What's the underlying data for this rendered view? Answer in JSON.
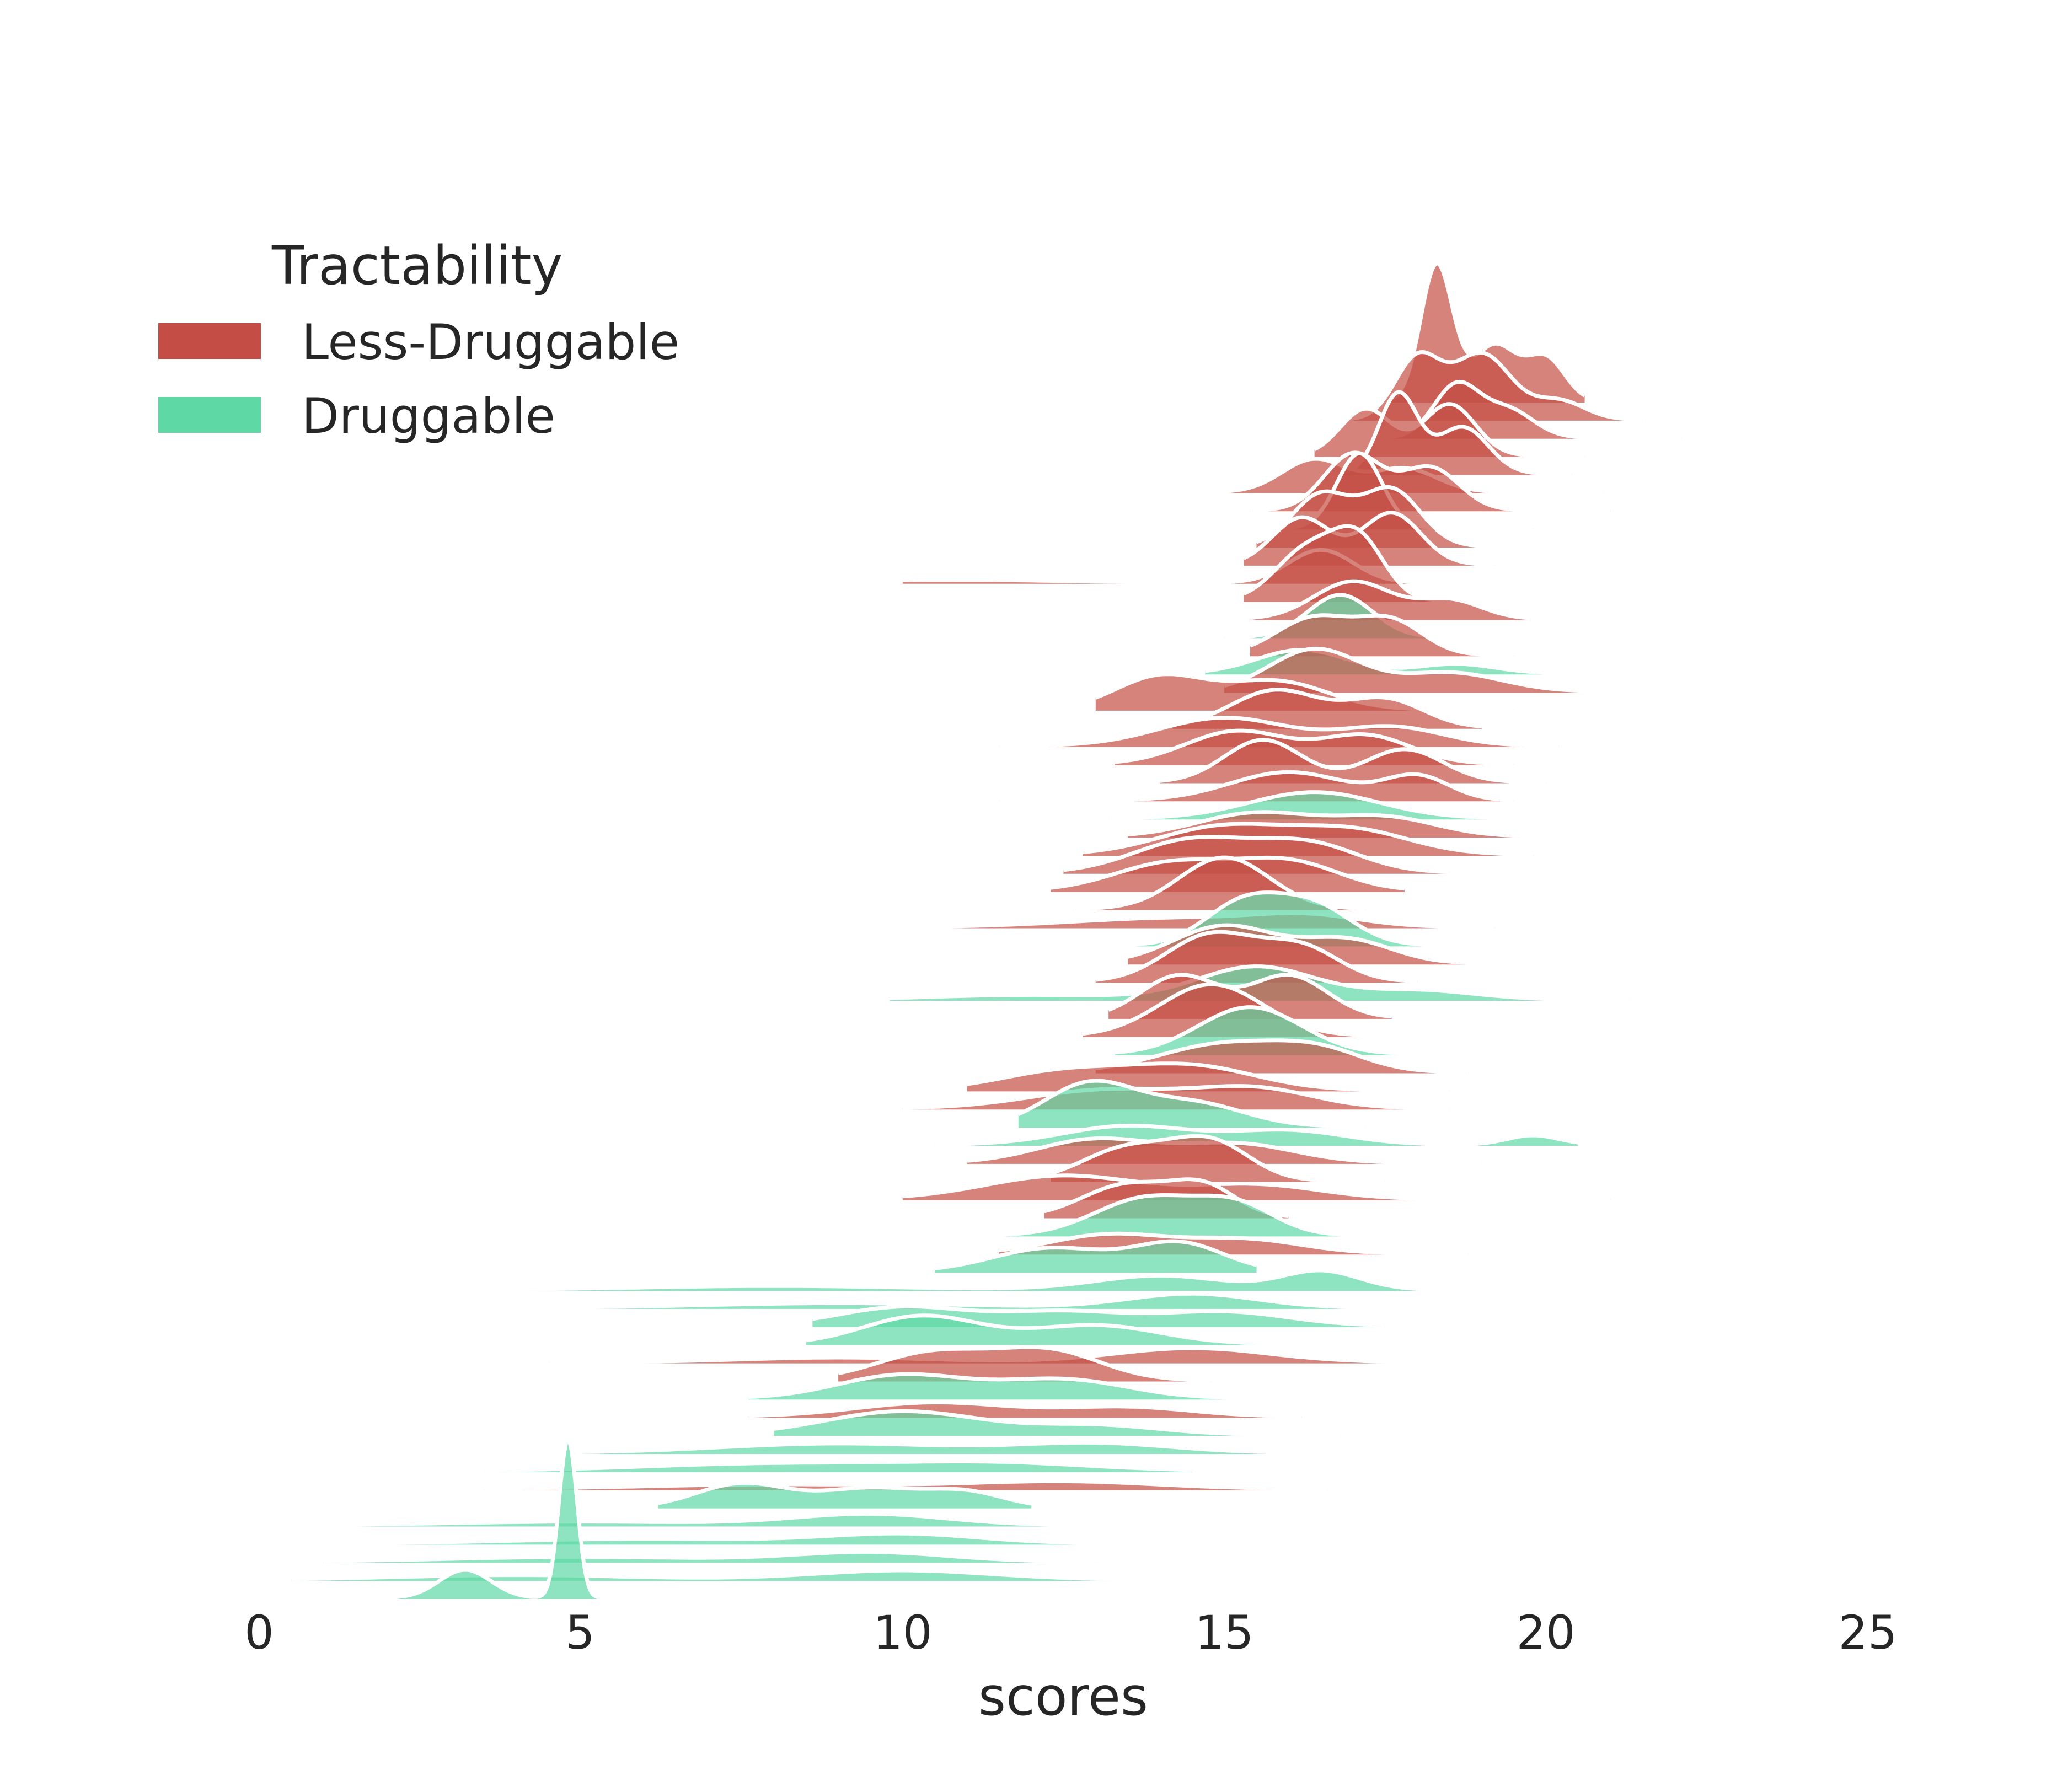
{
  "chart_data": {
    "type": "area",
    "xlabel": "scores",
    "xlim": [
      0,
      25
    ],
    "x_ticks": [
      0,
      5,
      10,
      15,
      20,
      25
    ],
    "x_tick_labels": [
      "0",
      "5",
      "10",
      "15",
      "20",
      "25"
    ],
    "grid": false,
    "legend": {
      "title": "Tractability",
      "placement": "top-left",
      "entries": [
        {
          "label": "Less-Druggable",
          "color": "#c44e45"
        },
        {
          "label": "Druggable",
          "color": "#5ed8a5"
        }
      ]
    },
    "series_colors": {
      "Less-Druggable": "#c44e45",
      "Druggable": "#5ed8a5"
    },
    "ridges": [
      {
        "group": "Less-Druggable",
        "min": 17.6,
        "max": 20.6,
        "peaks": [
          [
            18.3,
            1.45,
            0.25
          ],
          [
            19.2,
            0.6,
            0.35
          ],
          [
            20.0,
            0.45,
            0.3
          ]
        ]
      },
      {
        "group": "Less-Druggable",
        "min": 16.5,
        "max": 21.5,
        "peaks": [
          [
            18.0,
            0.65,
            0.35
          ],
          [
            19.0,
            0.7,
            0.45
          ],
          [
            20.2,
            0.2,
            0.4
          ]
        ]
      },
      {
        "group": "Less-Druggable",
        "min": 17.0,
        "max": 22.1,
        "peaks": [
          [
            18.6,
            0.55,
            0.35
          ],
          [
            19.4,
            0.3,
            0.4
          ]
        ]
      },
      {
        "group": "Less-Druggable",
        "min": 16.4,
        "max": 20.6,
        "peaks": [
          [
            17.2,
            0.5,
            0.4
          ],
          [
            18.5,
            0.55,
            0.4
          ]
        ]
      },
      {
        "group": "Less-Druggable",
        "min": 15.8,
        "max": 20.4,
        "peaks": [
          [
            17.7,
            0.85,
            0.3
          ],
          [
            18.7,
            0.5,
            0.4
          ]
        ]
      },
      {
        "group": "Less-Druggable",
        "min": 14.6,
        "max": 20.9,
        "peaks": [
          [
            16.4,
            0.35,
            0.5
          ],
          [
            17.8,
            0.25,
            0.5
          ]
        ]
      },
      {
        "group": "Less-Druggable",
        "min": 15.4,
        "max": 21.0,
        "peaks": [
          [
            17.0,
            0.6,
            0.45
          ],
          [
            18.2,
            0.45,
            0.45
          ]
        ]
      },
      {
        "group": "Less-Druggable",
        "min": 15.2,
        "max": 19.8,
        "peaks": [
          [
            17.1,
            0.8,
            0.35
          ]
        ]
      },
      {
        "group": "Less-Druggable",
        "min": 15.5,
        "max": 19.5,
        "peaks": [
          [
            16.5,
            0.55,
            0.45
          ],
          [
            17.6,
            0.6,
            0.45
          ]
        ]
      },
      {
        "group": "Less-Druggable",
        "min": 15.3,
        "max": 19.2,
        "peaks": [
          [
            16.2,
            0.5,
            0.45
          ],
          [
            17.6,
            0.55,
            0.45
          ]
        ]
      },
      {
        "group": "Less-Druggable",
        "min": 10.0,
        "max": 20.5,
        "peaks": [
          [
            10.8,
            0.03,
            1.6
          ],
          [
            16.5,
            0.35,
            0.5
          ]
        ]
      },
      {
        "group": "Less-Druggable",
        "min": 15.3,
        "max": 19.0,
        "peaks": [
          [
            16.3,
            0.55,
            0.5
          ],
          [
            17.1,
            0.6,
            0.4
          ]
        ]
      },
      {
        "group": "Less-Druggable",
        "min": 15.4,
        "max": 20.5,
        "peaks": [
          [
            17.0,
            0.4,
            0.6
          ],
          [
            18.5,
            0.2,
            0.5
          ]
        ]
      },
      {
        "group": "Druggable",
        "min": 15.0,
        "max": 19.5,
        "peaks": [
          [
            16.8,
            0.45,
            0.5
          ]
        ]
      },
      {
        "group": "Less-Druggable",
        "min": 15.4,
        "max": 19.5,
        "peaks": [
          [
            16.4,
            0.4,
            0.6
          ],
          [
            17.6,
            0.35,
            0.5
          ]
        ]
      },
      {
        "group": "Druggable",
        "min": 14.7,
        "max": 20.8,
        "peaks": [
          [
            16.2,
            0.25,
            0.7
          ],
          [
            18.6,
            0.1,
            0.6
          ]
        ]
      },
      {
        "group": "Less-Druggable",
        "min": 15.0,
        "max": 22.0,
        "peaks": [
          [
            16.4,
            0.45,
            0.7
          ],
          [
            18.5,
            0.2,
            0.8
          ]
        ]
      },
      {
        "group": "Less-Druggable",
        "min": 13.0,
        "max": 19.5,
        "peaks": [
          [
            14.0,
            0.35,
            0.7
          ],
          [
            15.8,
            0.3,
            0.8
          ]
        ]
      },
      {
        "group": "Less-Druggable",
        "min": 14.2,
        "max": 19.0,
        "peaks": [
          [
            15.8,
            0.4,
            0.7
          ],
          [
            17.5,
            0.3,
            0.6
          ]
        ]
      },
      {
        "group": "Less-Druggable",
        "min": 11.5,
        "max": 20.2,
        "peaks": [
          [
            15.0,
            0.3,
            1.0
          ],
          [
            17.6,
            0.2,
            0.8
          ]
        ]
      },
      {
        "group": "Less-Druggable",
        "min": 13.3,
        "max": 19.5,
        "peaks": [
          [
            15.2,
            0.35,
            0.8
          ],
          [
            17.2,
            0.3,
            0.7
          ]
        ]
      },
      {
        "group": "Less-Druggable",
        "min": 14.0,
        "max": 20.0,
        "peaks": [
          [
            15.6,
            0.45,
            0.6
          ],
          [
            17.8,
            0.35,
            0.6
          ]
        ]
      },
      {
        "group": "Less-Druggable",
        "min": 11.5,
        "max": 19.5,
        "peaks": [
          [
            16.0,
            0.3,
            0.9
          ],
          [
            18.0,
            0.25,
            0.5
          ]
        ]
      },
      {
        "group": "Druggable",
        "min": 13.2,
        "max": 20.5,
        "peaks": [
          [
            16.4,
            0.28,
            1.0
          ]
        ]
      },
      {
        "group": "Less-Druggable",
        "min": 13.5,
        "max": 20.5,
        "peaks": [
          [
            15.5,
            0.25,
            0.9
          ],
          [
            17.5,
            0.2,
            0.8
          ]
        ]
      },
      {
        "group": "Less-Druggable",
        "min": 12.8,
        "max": 19.8,
        "peaks": [
          [
            15.0,
            0.3,
            1.0
          ],
          [
            17.0,
            0.25,
            0.9
          ]
        ]
      },
      {
        "group": "Less-Druggable",
        "min": 12.5,
        "max": 18.5,
        "peaks": [
          [
            14.5,
            0.35,
            0.9
          ],
          [
            16.3,
            0.3,
            0.8
          ]
        ]
      },
      {
        "group": "Less-Druggable",
        "min": 12.3,
        "max": 17.8,
        "peaks": [
          [
            14.2,
            0.3,
            0.9
          ],
          [
            16.0,
            0.3,
            0.8
          ]
        ]
      },
      {
        "group": "Less-Druggable",
        "min": 12.7,
        "max": 17.2,
        "peaks": [
          [
            15.0,
            0.55,
            0.7
          ]
        ]
      },
      {
        "group": "Less-Druggable",
        "min": 9.8,
        "max": 19.2,
        "peaks": [
          [
            14.3,
            0.1,
            1.6
          ],
          [
            16.3,
            0.1,
            0.8
          ]
        ]
      },
      {
        "group": "Druggable",
        "min": 13.0,
        "max": 18.8,
        "peaks": [
          [
            15.3,
            0.45,
            0.6
          ],
          [
            16.4,
            0.4,
            0.6
          ]
        ]
      },
      {
        "group": "Less-Druggable",
        "min": 13.5,
        "max": 22.3,
        "peaks": [
          [
            15.0,
            0.4,
            0.8
          ],
          [
            16.9,
            0.25,
            0.7
          ]
        ]
      },
      {
        "group": "Less-Druggable",
        "min": 13.0,
        "max": 18.0,
        "peaks": [
          [
            14.8,
            0.5,
            0.7
          ],
          [
            16.2,
            0.35,
            0.6
          ]
        ]
      },
      {
        "group": "Druggable",
        "min": 9.8,
        "max": 21.3,
        "peaks": [
          [
            12.0,
            0.05,
            1.5
          ],
          [
            15.5,
            0.35,
            0.9
          ],
          [
            18.0,
            0.1,
            0.9
          ]
        ]
      },
      {
        "group": "Less-Druggable",
        "min": 13.2,
        "max": 17.6,
        "peaks": [
          [
            14.3,
            0.45,
            0.6
          ],
          [
            16.0,
            0.45,
            0.6
          ]
        ]
      },
      {
        "group": "Less-Druggable",
        "min": 12.8,
        "max": 17.8,
        "peaks": [
          [
            14.8,
            0.55,
            0.8
          ]
        ]
      },
      {
        "group": "Druggable",
        "min": 13.3,
        "max": 18.3,
        "peaks": [
          [
            15.4,
            0.5,
            0.8
          ]
        ]
      },
      {
        "group": "Less-Druggable",
        "min": 13.0,
        "max": 18.8,
        "peaks": [
          [
            15.0,
            0.3,
            1.0
          ],
          [
            16.5,
            0.2,
            0.7
          ]
        ]
      },
      {
        "group": "Less-Druggable",
        "min": 11.0,
        "max": 18.5,
        "peaks": [
          [
            12.5,
            0.2,
            1.0
          ],
          [
            14.5,
            0.25,
            1.0
          ]
        ]
      },
      {
        "group": "Less-Druggable",
        "min": 10.0,
        "max": 18.5,
        "peaks": [
          [
            13.2,
            0.2,
            1.2
          ],
          [
            15.5,
            0.2,
            0.9
          ]
        ]
      },
      {
        "group": "Druggable",
        "min": 11.8,
        "max": 17.2,
        "peaks": [
          [
            12.9,
            0.45,
            0.7
          ],
          [
            14.5,
            0.25,
            0.8
          ]
        ]
      },
      {
        "group": "Druggable",
        "min": 10.5,
        "max": 20.5,
        "peaks": [
          [
            13.5,
            0.2,
            1.0
          ],
          [
            16.0,
            0.15,
            0.9
          ],
          [
            19.8,
            0.1,
            0.4
          ]
        ]
      },
      {
        "group": "Less-Druggable",
        "min": 11.0,
        "max": 19.0,
        "peaks": [
          [
            13.0,
            0.25,
            0.9
          ],
          [
            15.2,
            0.2,
            0.9
          ]
        ]
      },
      {
        "group": "Less-Druggable",
        "min": 12.3,
        "max": 17.5,
        "peaks": [
          [
            13.5,
            0.35,
            0.7
          ],
          [
            14.8,
            0.4,
            0.6
          ]
        ]
      },
      {
        "group": "Less-Druggable",
        "min": 10.0,
        "max": 21.0,
        "peaks": [
          [
            12.5,
            0.25,
            1.2
          ],
          [
            15.5,
            0.15,
            1.0
          ]
        ]
      },
      {
        "group": "Less-Druggable",
        "min": 12.2,
        "max": 16.0,
        "peaks": [
          [
            13.5,
            0.35,
            0.7
          ],
          [
            14.7,
            0.3,
            0.5
          ]
        ]
      },
      {
        "group": "Druggable",
        "min": 10.6,
        "max": 19.2,
        "peaks": [
          [
            13.8,
            0.4,
            0.8
          ],
          [
            15.2,
            0.3,
            0.6
          ]
        ]
      },
      {
        "group": "Less-Druggable",
        "min": 11.5,
        "max": 18.8,
        "peaks": [
          [
            13.2,
            0.2,
            0.9
          ],
          [
            15.3,
            0.15,
            0.9
          ]
        ]
      },
      {
        "group": "Druggable",
        "min": 10.5,
        "max": 15.5,
        "peaks": [
          [
            12.3,
            0.25,
            0.9
          ],
          [
            14.3,
            0.3,
            0.7
          ]
        ]
      },
      {
        "group": "Druggable",
        "min": 3.0,
        "max": 18.0,
        "peaks": [
          [
            8.0,
            0.04,
            2.0
          ],
          [
            14.0,
            0.15,
            1.0
          ],
          [
            16.5,
            0.2,
            0.6
          ]
        ]
      },
      {
        "group": "Druggable",
        "min": 3.5,
        "max": 17.5,
        "peaks": [
          [
            9.0,
            0.05,
            2.0
          ],
          [
            14.5,
            0.15,
            1.0
          ]
        ]
      },
      {
        "group": "Druggable",
        "min": 8.6,
        "max": 17.5,
        "peaks": [
          [
            10.0,
            0.2,
            1.0
          ],
          [
            12.5,
            0.15,
            1.0
          ],
          [
            15.0,
            0.15,
            1.0
          ]
        ]
      },
      {
        "group": "Druggable",
        "min": 8.5,
        "max": 17.0,
        "peaks": [
          [
            10.3,
            0.3,
            0.9
          ],
          [
            13.0,
            0.2,
            1.0
          ]
        ]
      },
      {
        "group": "Less-Druggable",
        "min": 4.5,
        "max": 19.0,
        "peaks": [
          [
            9.0,
            0.05,
            1.5
          ],
          [
            14.5,
            0.15,
            1.2
          ]
        ]
      },
      {
        "group": "Less-Druggable",
        "min": 9.0,
        "max": 14.8,
        "peaks": [
          [
            10.5,
            0.3,
            0.9
          ],
          [
            12.3,
            0.3,
            0.8
          ]
        ]
      },
      {
        "group": "Druggable",
        "min": 7.6,
        "max": 15.5,
        "peaks": [
          [
            10.0,
            0.25,
            1.0
          ],
          [
            12.5,
            0.2,
            1.0
          ]
        ]
      },
      {
        "group": "Less-Druggable",
        "min": 7.6,
        "max": 16.2,
        "peaks": [
          [
            10.5,
            0.15,
            1.2
          ],
          [
            13.5,
            0.1,
            1.0
          ]
        ]
      },
      {
        "group": "Druggable",
        "min": 8.0,
        "max": 16.8,
        "peaks": [
          [
            10.0,
            0.25,
            1.2
          ],
          [
            13.0,
            0.1,
            1.0
          ]
        ]
      },
      {
        "group": "Druggable",
        "min": 4.9,
        "max": 15.8,
        "peaks": [
          [
            9.0,
            0.1,
            1.8
          ],
          [
            13.0,
            0.1,
            1.2
          ]
        ]
      },
      {
        "group": "Druggable",
        "min": 3.5,
        "max": 14.5,
        "peaks": [
          [
            8.0,
            0.08,
            2.0
          ],
          [
            11.5,
            0.08,
            1.5
          ]
        ]
      },
      {
        "group": "Less-Druggable",
        "min": 3.5,
        "max": 16.6,
        "peaks": [
          [
            8.0,
            0.05,
            2.0
          ],
          [
            12.5,
            0.08,
            1.5
          ]
        ]
      },
      {
        "group": "Druggable",
        "min": 6.2,
        "max": 12.0,
        "peaks": [
          [
            7.5,
            0.25,
            0.7
          ],
          [
            9.5,
            0.2,
            0.8
          ],
          [
            11.0,
            0.15,
            0.6
          ]
        ]
      },
      {
        "group": "Druggable",
        "min": 1.5,
        "max": 12.5,
        "peaks": [
          [
            5.0,
            0.04,
            2.0
          ],
          [
            9.5,
            0.12,
            1.2
          ]
        ]
      },
      {
        "group": "Druggable",
        "min": 1.8,
        "max": 14.0,
        "peaks": [
          [
            6.0,
            0.05,
            2.0
          ],
          [
            10.0,
            0.1,
            1.2
          ]
        ]
      },
      {
        "group": "Druggable",
        "min": 1.0,
        "max": 13.0,
        "peaks": [
          [
            5.0,
            0.05,
            2.0
          ],
          [
            9.5,
            0.1,
            1.2
          ]
        ]
      },
      {
        "group": "Druggable",
        "min": 0.5,
        "max": 17.0,
        "peaks": [
          [
            4.0,
            0.05,
            1.8
          ],
          [
            10.0,
            0.1,
            1.4
          ]
        ]
      },
      {
        "group": "Druggable",
        "min": 0.9,
        "max": 5.9,
        "peaks": [
          [
            3.2,
            0.3,
            0.4
          ],
          [
            4.8,
            1.7,
            0.14
          ]
        ]
      }
    ]
  }
}
